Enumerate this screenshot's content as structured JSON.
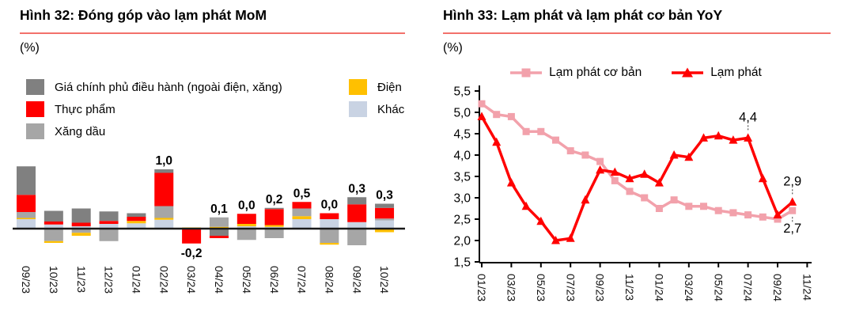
{
  "page": {
    "background": "#ffffff",
    "accent_rule_color": "#f2716b",
    "text_color": "#000000"
  },
  "figures": {
    "left": {
      "title": "Hình 32: Đóng góp vào lạm phát MoM",
      "unit": "(%)"
    },
    "right": {
      "title": "Hình 33: Lạm phát và lạm phát cơ bản YoY",
      "unit": "(%)"
    }
  },
  "chart_data": [
    {
      "type": "bar",
      "stacked": true,
      "title": "Hình 32: Đóng góp vào lạm phát MoM",
      "unit": "(%)",
      "grid": false,
      "y_axis_shown": false,
      "categories": [
        "09/23",
        "10/23",
        "11/23",
        "12/23",
        "01/24",
        "02/24",
        "03/24",
        "04/24",
        "05/24",
        "06/24",
        "07/24",
        "08/24",
        "09/24",
        "10/24"
      ],
      "series_meta": {
        "gia_chinh_phu": {
          "label": "Giá chính phủ điều hành (ngoài điện, xăng)",
          "color": "#808080"
        },
        "thuc_pham": {
          "label": "Thực phẩm",
          "color": "#ff0000"
        },
        "xang_dau": {
          "label": "Xăng dầu",
          "color": "#a6a6a6"
        },
        "dien": {
          "label": "Điện",
          "color": "#ffc000"
        },
        "khac": {
          "label": "Khác",
          "color": "#c9d3e3"
        }
      },
      "legend_columns": [
        [
          "gia_chinh_phu",
          "thuc_pham",
          "xang_dau"
        ],
        [
          "dien",
          "khac"
        ]
      ],
      "bars": [
        {
          "category": "09/23",
          "positive": [
            {
              "series": "khac",
              "value": 0.16
            },
            {
              "series": "dien",
              "value": 0.02
            },
            {
              "series": "xang_dau",
              "value": 0.1
            },
            {
              "series": "thuc_pham",
              "value": 0.29
            },
            {
              "series": "gia_chinh_phu",
              "value": 0.48
            }
          ],
          "negative": [],
          "label": null
        },
        {
          "category": "10/23",
          "positive": [
            {
              "series": "khac",
              "value": 0.07
            },
            {
              "series": "thuc_pham",
              "value": 0.05
            },
            {
              "series": "gia_chinh_phu",
              "value": 0.18
            }
          ],
          "negative": [
            {
              "series": "xang_dau",
              "value": 0.21
            },
            {
              "series": "dien",
              "value": 0.03
            }
          ],
          "label": null
        },
        {
          "category": "11/23",
          "positive": [
            {
              "series": "khac",
              "value": 0.04
            },
            {
              "series": "thuc_pham",
              "value": 0.06
            },
            {
              "series": "gia_chinh_phu",
              "value": 0.24
            }
          ],
          "negative": [
            {
              "series": "xang_dau",
              "value": 0.07
            },
            {
              "series": "dien",
              "value": 0.05
            }
          ],
          "label": null
        },
        {
          "category": "12/23",
          "positive": [
            {
              "series": "khac",
              "value": 0.08
            },
            {
              "series": "thuc_pham",
              "value": 0.05
            },
            {
              "series": "gia_chinh_phu",
              "value": 0.16
            }
          ],
          "negative": [
            {
              "series": "xang_dau",
              "value": 0.21
            }
          ],
          "label": null
        },
        {
          "category": "01/24",
          "positive": [
            {
              "series": "khac",
              "value": 0.09
            },
            {
              "series": "dien",
              "value": 0.04
            },
            {
              "series": "thuc_pham",
              "value": 0.07
            },
            {
              "series": "gia_chinh_phu",
              "value": 0.06
            }
          ],
          "negative": [],
          "label": null
        },
        {
          "category": "02/24",
          "positive": [
            {
              "series": "khac",
              "value": 0.15
            },
            {
              "series": "dien",
              "value": 0.03
            },
            {
              "series": "xang_dau",
              "value": 0.2
            },
            {
              "series": "thuc_pham",
              "value": 0.56
            },
            {
              "series": "gia_chinh_phu",
              "value": 0.06
            }
          ],
          "negative": [],
          "label": "1,0"
        },
        {
          "category": "03/24",
          "positive": [
            {
              "series": "dien",
              "value": 0.02
            }
          ],
          "negative": [
            {
              "series": "thuc_pham",
              "value": 0.25
            }
          ],
          "label": "-0,2"
        },
        {
          "category": "04/24",
          "positive": [
            {
              "series": "dien",
              "value": 0.03
            },
            {
              "series": "xang_dau",
              "value": 0.16
            }
          ],
          "negative": [
            {
              "series": "gia_chinh_phu",
              "value": 0.12
            },
            {
              "series": "thuc_pham",
              "value": 0.04
            }
          ],
          "label": "0,1"
        },
        {
          "category": "05/24",
          "positive": [
            {
              "series": "khac",
              "value": 0.04
            },
            {
              "series": "dien",
              "value": 0.04
            },
            {
              "series": "thuc_pham",
              "value": 0.17
            }
          ],
          "negative": [
            {
              "series": "xang_dau",
              "value": 0.19
            }
          ],
          "label": "0,0"
        },
        {
          "category": "06/24",
          "positive": [
            {
              "series": "khac",
              "value": 0.03
            },
            {
              "series": "dien",
              "value": 0.03
            },
            {
              "series": "thuc_pham",
              "value": 0.27
            },
            {
              "series": "gia_chinh_phu",
              "value": 0.02
            }
          ],
          "negative": [
            {
              "series": "xang_dau",
              "value": 0.16
            }
          ],
          "label": "0,2"
        },
        {
          "category": "07/24",
          "positive": [
            {
              "series": "khac",
              "value": 0.16
            },
            {
              "series": "dien",
              "value": 0.05
            },
            {
              "series": "xang_dau",
              "value": 0.13
            },
            {
              "series": "thuc_pham",
              "value": 0.11
            }
          ],
          "negative": [],
          "label": "0,5"
        },
        {
          "category": "08/24",
          "positive": [
            {
              "series": "khac",
              "value": 0.16
            },
            {
              "series": "thuc_pham",
              "value": 0.1
            }
          ],
          "negative": [
            {
              "series": "xang_dau",
              "value": 0.24
            },
            {
              "series": "dien",
              "value": 0.03
            }
          ],
          "label": "0,0"
        },
        {
          "category": "09/24",
          "positive": [
            {
              "series": "khac",
              "value": 0.11
            },
            {
              "series": "thuc_pham",
              "value": 0.3
            },
            {
              "series": "gia_chinh_phu",
              "value": 0.12
            }
          ],
          "negative": [
            {
              "series": "xang_dau",
              "value": 0.28
            }
          ],
          "label": "0,3"
        },
        {
          "category": "10/24",
          "positive": [
            {
              "series": "khac",
              "value": 0.14
            },
            {
              "series": "xang_dau",
              "value": 0.03
            },
            {
              "series": "thuc_pham",
              "value": 0.18
            },
            {
              "series": "gia_chinh_phu",
              "value": 0.07
            }
          ],
          "negative": [
            {
              "series": "dien",
              "value": 0.06
            }
          ],
          "label": "0,3"
        }
      ]
    },
    {
      "type": "line",
      "title": "Hình 33: Lạm phát và lạm phát cơ bản YoY",
      "unit": "(%)",
      "grid": false,
      "legend_position": "top",
      "x_monthly": [
        "01/23",
        "02/23",
        "03/23",
        "04/23",
        "05/23",
        "06/23",
        "07/23",
        "08/23",
        "09/23",
        "10/23",
        "11/23",
        "12/23",
        "01/24",
        "02/24",
        "03/24",
        "04/24",
        "05/24",
        "06/24",
        "07/24",
        "08/24",
        "09/24",
        "10/24"
      ],
      "x_tick_labels": [
        "01/23",
        "03/23",
        "05/23",
        "07/23",
        "09/23",
        "11/23",
        "01/24",
        "03/24",
        "05/24",
        "07/24",
        "09/24",
        "11/24"
      ],
      "ylim": [
        1.5,
        5.5
      ],
      "ytick_step": 0.5,
      "ytick_labels": [
        "5,5",
        "5,0",
        "4,5",
        "4,0",
        "3,5",
        "3,0",
        "2,5",
        "2,0",
        "1,5"
      ],
      "series": [
        {
          "name": "Lạm phát cơ bản",
          "color": "#f2a1ab",
          "marker": "square",
          "values": [
            5.2,
            4.95,
            4.9,
            4.55,
            4.55,
            4.35,
            4.1,
            4.0,
            3.85,
            3.4,
            3.15,
            3.0,
            2.75,
            2.95,
            2.8,
            2.8,
            2.7,
            2.65,
            2.6,
            2.55,
            2.5,
            2.7
          ]
        },
        {
          "name": "Lạm phát",
          "color": "#ff0000",
          "marker": "triangle",
          "values": [
            4.9,
            4.3,
            3.35,
            2.8,
            2.45,
            2.0,
            2.05,
            2.95,
            3.65,
            3.6,
            3.45,
            3.55,
            3.35,
            4.0,
            3.95,
            4.4,
            4.45,
            4.35,
            4.4,
            3.45,
            2.6,
            2.9
          ]
        }
      ],
      "annotations": [
        {
          "text": "4,4",
          "series": 1,
          "x": "07/24",
          "placement": "above"
        },
        {
          "text": "2,9",
          "series": 1,
          "x": "10/24",
          "placement": "above"
        },
        {
          "text": "2,7",
          "series": 0,
          "x": "10/24",
          "placement": "below"
        }
      ]
    }
  ]
}
